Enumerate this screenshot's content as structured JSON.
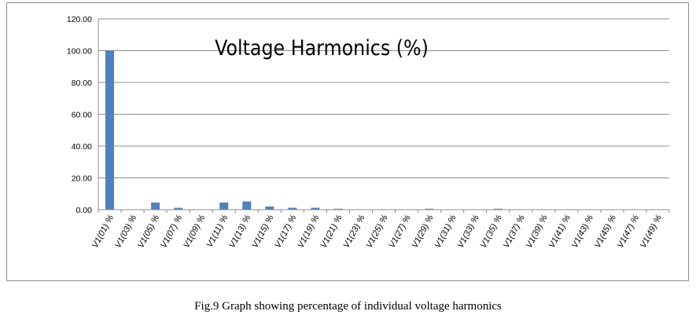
{
  "chart_data": {
    "type": "bar",
    "title": "Voltage Harmonics (%)",
    "categories": [
      "V1(01) %",
      "V1(03) %",
      "V1(05) %",
      "V1(07) %",
      "V1(09) %",
      "V1(11) %",
      "V1(13) %",
      "V1(15) %",
      "V1(17) %",
      "V1(19) %",
      "V1(21) %",
      "V1(23) %",
      "V1(25) %",
      "V1(27) %",
      "V1(29) %",
      "V1(31) %",
      "V1(33) %",
      "V1(35) %",
      "V1(37) %",
      "V1(39) %",
      "V1(41) %",
      "V1(43) %",
      "V1(45) %",
      "V1(47) %",
      "V1(49) %"
    ],
    "values": [
      100.0,
      0.0,
      4.5,
      1.2,
      0.0,
      4.5,
      5.2,
      2.0,
      1.2,
      1.2,
      0.6,
      0.0,
      0.0,
      0.0,
      0.6,
      0.0,
      0.0,
      0.6,
      0.0,
      0.0,
      0.0,
      0.0,
      0.0,
      0.0,
      0.0
    ],
    "ylim": [
      0,
      120
    ],
    "yticks": [
      "0.00",
      "20.00",
      "40.00",
      "60.00",
      "80.00",
      "100.00",
      "120.00"
    ],
    "grid": true,
    "legend": "none",
    "bar_color": "#4F81BD",
    "grid_color": "#8c8c8c"
  },
  "caption": "Fig.9 Graph showing percentage of individual voltage harmonics"
}
